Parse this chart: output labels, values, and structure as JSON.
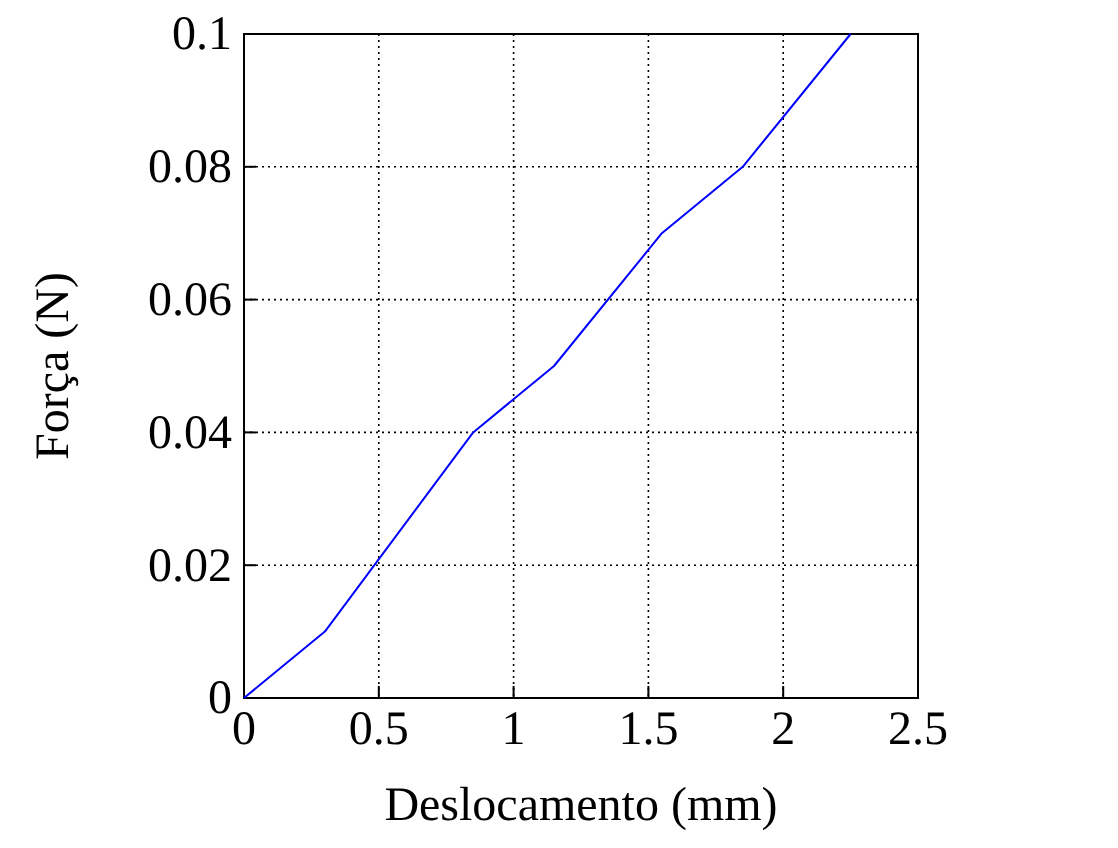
{
  "chart_data": {
    "type": "line",
    "xlabel": "Deslocamento (mm)",
    "ylabel": "Força (N)",
    "x": [
      0,
      0.3,
      0.85,
      1.15,
      1.55,
      1.85,
      2.25
    ],
    "series": [
      {
        "color": "#0000ff",
        "values": [
          0,
          0.01,
          0.04,
          0.05,
          0.07,
          0.08,
          0.1
        ]
      }
    ],
    "xlim": [
      0,
      2.5
    ],
    "xticks": [
      0,
      0.5,
      1,
      1.5,
      2,
      2.5
    ],
    "ylim": [
      0,
      0.1
    ],
    "yticks": [
      0,
      0.02,
      0.04,
      0.06,
      0.08,
      0.1
    ],
    "grid": true,
    "marker": "none",
    "line_style": "solid"
  }
}
